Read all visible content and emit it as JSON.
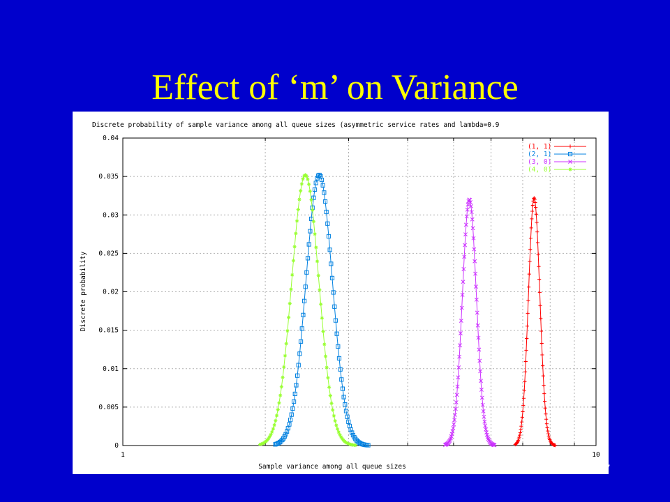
{
  "slide": {
    "title": "Effect of ‘m’ on Variance",
    "number": "7",
    "background": "#0000cc",
    "title_color": "#ffff00"
  },
  "chart_data": {
    "type": "line",
    "title": "Discrete probability of sample variance among all queue sizes (asymmetric service rates and lambda=0.9",
    "xlabel": "Sample variance among all queue sizes",
    "ylabel": "Discrete probability",
    "xscale": "log",
    "xlim": [
      1,
      10
    ],
    "ylim": [
      0,
      0.04
    ],
    "xticks": [
      "1",
      "10"
    ],
    "yticks": [
      "0",
      "0.005",
      "0.01",
      "0.015",
      "0.02",
      "0.025",
      "0.03",
      "0.035",
      "0.04"
    ],
    "grid": true,
    "legend_position": "top-right",
    "series": [
      {
        "name": "(1, 1)",
        "color": "#ff0000",
        "marker": "plus",
        "peak_x": 7.4,
        "peak_y": 0.0322,
        "range": [
          6.75,
          8.2
        ]
      },
      {
        "name": "(2, 1)",
        "color": "#0080e0",
        "marker": "square",
        "peak_x": 2.6,
        "peak_y": 0.0352,
        "range": [
          2.1,
          3.3
        ]
      },
      {
        "name": "(3, 0)",
        "color": "#cc33ff",
        "marker": "x",
        "peak_x": 5.4,
        "peak_y": 0.032,
        "range": [
          4.8,
          6.1
        ]
      },
      {
        "name": "(4, 0)",
        "color": "#99ff33",
        "marker": "star",
        "peak_x": 2.43,
        "peak_y": 0.0352,
        "range": [
          1.95,
          3.1
        ]
      }
    ]
  }
}
